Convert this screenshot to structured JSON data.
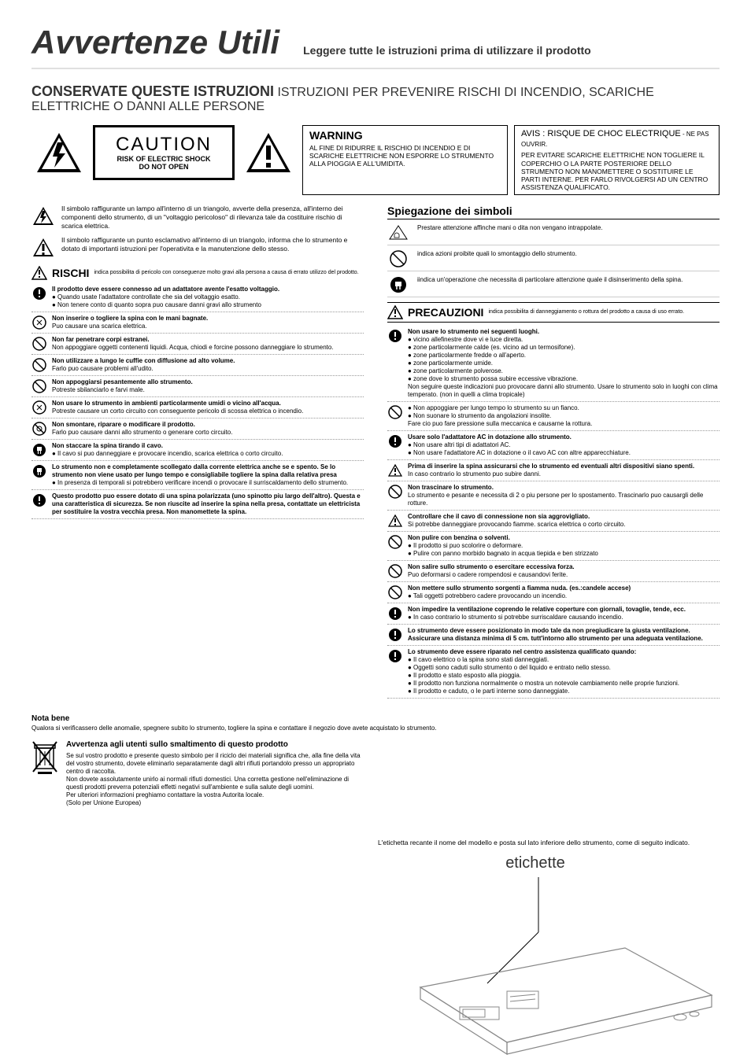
{
  "header": {
    "title": "Avvertenze Utili",
    "subtitle": "Leggere tutte le istruzioni prima di utilizzare il prodotto"
  },
  "instruction_line": {
    "bold": "CONSERVATE QUESTE ISTRUZIONI",
    "rest": " ISTRUZIONI PER PREVENIRE RISCHI DI INCENDIO, SCARICHE ELETTRICHE O DANNI ALLE PERSONE"
  },
  "caution_box": {
    "big": "CAUTION",
    "line1": "RISK OF ELECTRIC SHOCK",
    "line2": "DO NOT OPEN"
  },
  "warning_box": {
    "title": "WARNING",
    "body": "AL FINE DI RIDURRE IL RISCHIO DI INCENDIO E DI SCARICHE ELETTRICHE NON ESPORRE LO STRUMENTO ALLA PIOGGIA E ALL'UMIDITA."
  },
  "avis_box": {
    "title": "AVIS : RISQUE DE CHOC ELECTRIQUE",
    "title_small": " - NE PAS OUVRIR.",
    "body": "PER EVITARE SCARICHE ELETTRICHE NON TOGLIERE IL COPERCHIO O LA PARTE POSTERIORE DELLO STRUMENTO NON MANOMETTERE O SOSTITUIRE LE PARTI INTERNE. PER FARLO RIVOLGERSI AD UN CENTRO ASSISTENZA QUALIFICATO."
  },
  "symbol_explanations": [
    "Il simbolo raffigurante un lampo all'interno di un triangolo, avverte della presenza, all'interno dei componenti dello strumento, di un \"voltaggio pericoloso\" di rilevanza tale da costituire rischio di scarica elettrica.",
    "Il simbolo raffigurante un punto esclamativo all'interno di un triangolo, informa che lo strumento e dotato di importanti istruzioni per l'operativita e la manutenzione dello stesso."
  ],
  "rischi_header": {
    "label": "RISCHI",
    "sub": "indica possibilita di pericolo con conseguenze molto gravi alla persona a causa di errato utilizzo del prodotto."
  },
  "precauzioni_header": {
    "label": "PRECAUZIONI",
    "sub": "indica possibilita di danneggiamento o rottura del prodotto a causa di uso errato."
  },
  "spiegazione_title": "Spiegazione dei simboli",
  "legend": [
    "Prestare attenzione affinche mani o dita non vengano intrappolate.",
    "indica azioni proibite quali lo smontaggio dello strumento.",
    "iindica un'operazione che necessita di particolare attenzione quale il disinserimento della spina."
  ],
  "left_items": [
    {
      "bold": "Il prodotto deve essere connesso ad un adattatore avente l'esatto voltaggio.",
      "lines": [
        "● Quando usate l'adattatore controllate che sia del voltaggio esatto.",
        "● Non tenere conto di quanto sopra puo causare danni gravi allo strumento"
      ]
    },
    {
      "bold": "Non inserire o togliere la spina con le mani bagnate.",
      "lines": [
        "Puo causare una scarica elettrica."
      ]
    },
    {
      "bold": "Non far penetrare corpi estranei.",
      "lines": [
        "Non appoggiare oggetti contenenti liquidi. Acqua, chiodi e forcine possono danneggiare lo strumento."
      ]
    },
    {
      "bold": "Non utilizzare a lungo le cuffie con diffusione ad alto volume.",
      "lines": [
        "Farlo puo causare problemi all'udito."
      ]
    },
    {
      "bold": "Non appoggiarsi pesantemente allo strumento.",
      "lines": [
        "Potreste sbilanciarlo e farvi male."
      ]
    },
    {
      "bold": "Non usare lo strumento in ambienti particolarmente umidi o vicino all'acqua.",
      "lines": [
        "Potreste causare un corto circuito con conseguente pericolo di scossa elettrica o incendio."
      ]
    },
    {
      "bold": "Non smontare, riparare o modificare il prodotto.",
      "lines": [
        "Farlo puo causare danni allo strumento o generare corto circuito."
      ]
    },
    {
      "bold": "Non staccare la spina tirando il cavo.",
      "lines": [
        "● Il cavo si puo danneggiare e provocare incendio, scarica elettrica o corto circuito."
      ]
    },
    {
      "bold": "Lo strumento non e completamente scollegato dalla corrente elettrica anche se e spento. Se lo strumento non viene usato per lungo tempo e consigliabile togliere la spina dalla relativa presa",
      "lines": [
        "● In presenza di temporali si potrebbero verificare incendi o provocare il surriscaldamento dello strumento."
      ]
    },
    {
      "bold": "Questo prodotto puo essere dotato di una spina polarizzata (uno spinotto piu largo dell'altro). Questa e una caratteristica di sicurezza. Se non riuscite ad inserire la spina nella presa, contattate un elettricista per sostituire la vostra vecchia presa. Non manomettete la spina.",
      "lines": []
    }
  ],
  "right_items": [
    {
      "bold": "Non usare lo strumento nei seguenti luoghi.",
      "lines": [
        "● vicino allefinestre dove vi e luce diretta.",
        "● zone particolarmente calde (es. vicino ad un termosifone).",
        "● zone particolarmente fredde o all'aperto.",
        "● zone particolarmente umide.",
        "● zone particolarmente polverose.",
        "● zone dove lo strumento possa subire eccessive vibrazione.",
        "Non seguire queste indicazioni puo provocare danni allo strumento. Usare lo strumento solo in luoghi con clima temperato. (non in quelli a clima tropicale)"
      ]
    },
    {
      "bold": "",
      "lines": [
        "● Non appoggiare per lungo tempo lo strumento su un fianco.",
        "● Non suonare lo strumento da angolazioni insolite.",
        "Fare cio puo fare pressione sulla meccanica e causarne la rottura."
      ]
    },
    {
      "bold": "Usare solo l'adattatore AC in dotazione allo strumento.",
      "lines": [
        "● Non usare altri tipi di adattatori AC.",
        "● Non usare l'adattatore AC in dotazione o il cavo AC con altre apparecchiature."
      ]
    },
    {
      "bold": "Prima di inserire la spina assicurarsi che lo strumento ed eventuali altri dispositivi siano spenti.",
      "lines": [
        "In caso contrario lo strumento puo subire danni."
      ]
    },
    {
      "bold": "Non trascinare lo strumento.",
      "lines": [
        "Lo strumento e pesante e necessita di 2 o piu persone per lo spostamento. Trascinarlo puo causargli delle rotture."
      ]
    },
    {
      "bold": "Controllare che il cavo di connessione non sia aggrovigliato.",
      "lines": [
        "Si potrebbe danneggiare provocando fiamme. scarica elettrica o corto circuito."
      ]
    },
    {
      "bold": "Non pulire con benzina o solventi.",
      "lines": [
        "● Il prodotto si puo scolorire o deformare.",
        "● Pulire con panno morbido bagnato in acqua tiepida e ben strizzato"
      ]
    },
    {
      "bold": "Non salire sullo strumento o esercitare eccessiva forza.",
      "lines": [
        "Puo deformarsi o cadere rompendosi e causandovi ferite."
      ]
    },
    {
      "bold": "Non mettere sullo strumento sorgenti a fiamma nuda. (es.:candele accese)",
      "lines": [
        "● Tali oggetti potrebbero cadere provocando un incendio."
      ]
    },
    {
      "bold": "Non impedire la ventilazione coprendo le relative coperture con giornali, tovaglie, tende, ecc.",
      "lines": [
        "● In caso contrario lo strumento si potrebbe surriscaldare causando incendio."
      ]
    },
    {
      "bold": "Lo strumento deve essere posizionato in modo tale da non pregiudicare la giusta ventilazione. Assicurare una distanza minima di 5 cm. tutt'intorno allo strumento per una adeguata ventilazione.",
      "lines": []
    },
    {
      "bold": "Lo strumento deve essere riparato nel centro assistenza qualificato quando:",
      "lines": [
        "● Il cavo elettrico o la spina sono stati danneggiati.",
        "● Oggetti sono caduti sullo strumento o del liquido e entrato nello stesso.",
        "● Il prodotto e stato esposto alla pioggia.",
        "● Il prodotto non funziona normalmente o mostra un notevole cambiamento nelle proprie funzioni.",
        "● Il prodotto e caduto, o le parti interne sono danneggiate."
      ]
    }
  ],
  "nota": {
    "title": "Nota bene",
    "body": "Qualora si verificassero delle anomalie, spegnere subito lo strumento, togliere la spina e contattare il negozio dove avete acquistato lo strumento."
  },
  "disposal": {
    "title": "Avvertenza agli utenti sullo smaltimento di questo prodotto",
    "body": "Se sul vostro prodotto e presente questo simbolo per il riciclo dei materiali significa che, alla fine della vita del vostro strumento, dovete eliminarlo separatamente dagli altri rifiuti portandolo presso un appropriato centro di raccolta.\nNon dovete assolutamente unirlo ai normali rifiuti domestici. Una corretta gestione nell'eliminazione di questi prodotti preverra potenziali effetti negativi sull'ambiente e sulla salute degli uomini.\nPer ulteriori informazioni preghiamo contattare la vostra Autorita locale.\n(Solo per Unione Europea)"
  },
  "bottom_note": "L'etichetta recante il nome del modello e posta sul lato inferiore dello strumento, come di seguito indicato.",
  "etichette": "etichette"
}
